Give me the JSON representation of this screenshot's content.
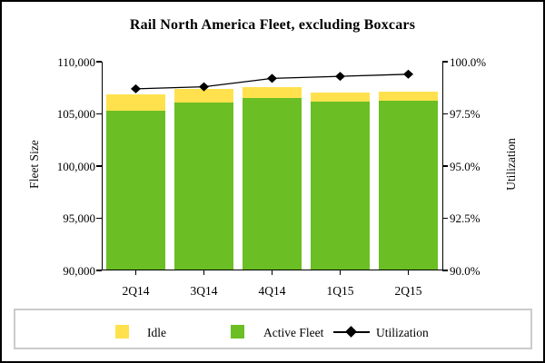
{
  "title": "Rail North America Fleet, excluding Boxcars",
  "chart_data": {
    "type": "bar",
    "subtype": "stacked-bar-with-line",
    "categories": [
      "2Q14",
      "3Q14",
      "4Q14",
      "1Q15",
      "2Q15"
    ],
    "series": [
      {
        "name": "Idle",
        "type": "bar",
        "stacked": true,
        "color": "#FFE14E",
        "values": [
          1600,
          1300,
          1050,
          870,
          800
        ]
      },
      {
        "name": "Active Fleet",
        "type": "bar",
        "stacked": true,
        "color": "#6BBE23",
        "values": [
          105300,
          106100,
          106500,
          106200,
          106300
        ]
      },
      {
        "name": "Utilization",
        "type": "line",
        "axis": "right",
        "color": "#000000",
        "marker": "diamond",
        "values": [
          98.7,
          98.8,
          99.2,
          99.3,
          99.4
        ]
      }
    ],
    "left_axis": {
      "label": "Fleet Size",
      "range": [
        90000,
        110000
      ],
      "ticks": [
        "110,000",
        "105,000",
        "100,000",
        "95,000",
        "90,000"
      ],
      "tick_values": [
        110000,
        105000,
        100000,
        95000,
        90000
      ]
    },
    "right_axis": {
      "label": "Utilization",
      "range": [
        90,
        100
      ],
      "ticks": [
        "100.0%",
        "97.5%",
        "95.0%",
        "92.5%",
        "90.0%"
      ],
      "tick_values": [
        100,
        97.5,
        95,
        92.5,
        90
      ]
    },
    "grid": false,
    "legend_position": "bottom",
    "colors": {
      "frame_border": "#000000",
      "legend_border": "#cbcbcb",
      "background": "#ffffff"
    }
  }
}
